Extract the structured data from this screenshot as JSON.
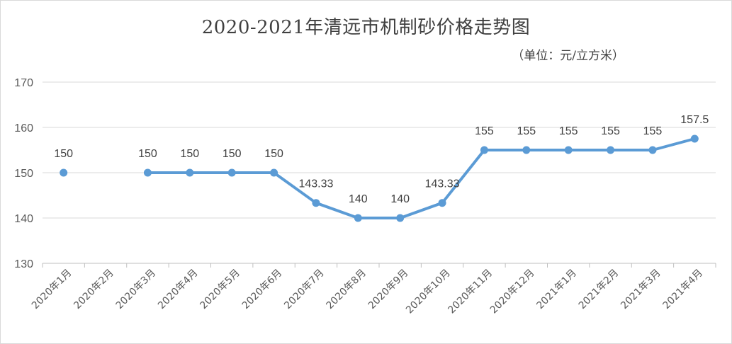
{
  "chart_data": {
    "type": "line",
    "title": "2020-2021年清远市机制砂价格走势图",
    "subtitle": "（单位：元/立方米）",
    "categories": [
      "2020年1月",
      "2020年2月",
      "2020年3月",
      "2020年4月",
      "2020年5月",
      "2020年6月",
      "2020年7月",
      "2020年8月",
      "2020年9月",
      "2020年10月",
      "2020年11月",
      "2020年12月",
      "2021年1月",
      "2021年2月",
      "2021年3月",
      "2021年4月"
    ],
    "series": [
      {
        "values": [
          150,
          null,
          150,
          150,
          150,
          150,
          143.33,
          140,
          140,
          143.33,
          155,
          155,
          155,
          155,
          155,
          157.5
        ],
        "labels": [
          "150",
          "",
          "150",
          "150",
          "150",
          "150",
          "143.33",
          "140",
          "140",
          "143.33",
          "155",
          "155",
          "155",
          "155",
          "155",
          "157.5"
        ]
      }
    ],
    "ylim": [
      130,
      170
    ],
    "yticks": [
      130,
      140,
      150,
      160,
      170
    ],
    "grid": true,
    "legend": "none",
    "colors": {
      "line": "#5b9bd5",
      "grid": "#d9d9d9",
      "axis": "#bfbfbf",
      "text": "#595959",
      "label": "#404040"
    }
  }
}
